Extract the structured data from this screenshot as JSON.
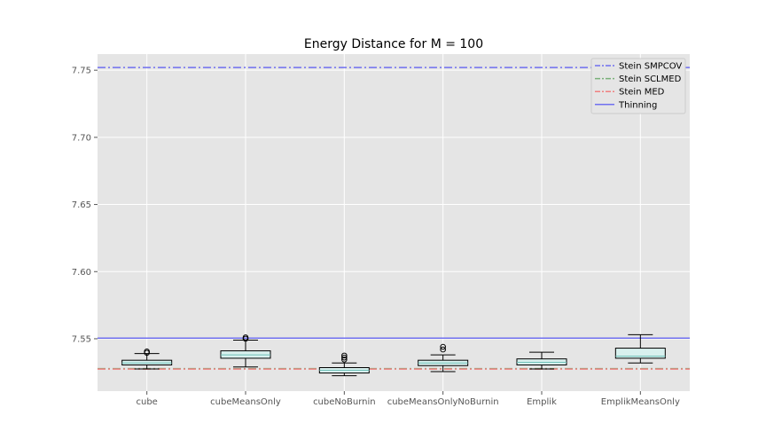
{
  "chart_data": {
    "type": "box",
    "title": "Energy Distance for M = 100",
    "xlabel": "",
    "ylabel": "",
    "ylim": [
      7.511,
      7.762
    ],
    "yticks": [
      "7.55",
      "7.60",
      "7.65",
      "7.70",
      "7.75"
    ],
    "ytick_values": [
      7.55,
      7.6,
      7.65,
      7.7,
      7.75
    ],
    "grid": true,
    "legend_position": "top-right",
    "background": "#e5e5e5",
    "categories": [
      "cube",
      "cubeMeansOnly",
      "cubeNoBurnin",
      "cubeMeansOnlyNoBurnin",
      "Emplik",
      "EmplikMeansOnly"
    ],
    "boxes": [
      {
        "whisker_low": 7.5275,
        "q1": 7.5305,
        "median": 7.532,
        "q3": 7.534,
        "whisker_high": 7.539,
        "outliers": [
          7.5395,
          7.5405
        ]
      },
      {
        "whisker_low": 7.529,
        "q1": 7.5355,
        "median": 7.538,
        "q3": 7.541,
        "whisker_high": 7.549,
        "outliers": [
          7.55,
          7.551
        ]
      },
      {
        "whisker_low": 7.5225,
        "q1": 7.5245,
        "median": 7.5265,
        "q3": 7.5285,
        "whisker_high": 7.532,
        "outliers": [
          7.5345,
          7.536,
          7.5375
        ]
      },
      {
        "whisker_low": 7.5255,
        "q1": 7.53,
        "median": 7.532,
        "q3": 7.534,
        "whisker_high": 7.538,
        "outliers": [
          7.542,
          7.544
        ]
      },
      {
        "whisker_low": 7.5275,
        "q1": 7.5305,
        "median": 7.5325,
        "q3": 7.535,
        "whisker_high": 7.54,
        "outliers": []
      },
      {
        "whisker_low": 7.532,
        "q1": 7.5355,
        "median": 7.537,
        "q3": 7.543,
        "whisker_high": 7.553,
        "outliers": []
      }
    ],
    "reference_lines": [
      {
        "name": "Stein SMPCOV",
        "value": 7.752,
        "color": "#7070f0",
        "style": "dashdot"
      },
      {
        "name": "Stein SCLMED",
        "value": 7.5278,
        "color": "#7ab07a",
        "style": "dashdot"
      },
      {
        "name": "Stein MED",
        "value": 7.5274,
        "color": "#f08080",
        "style": "dashdot"
      },
      {
        "name": "Thinning",
        "value": 7.5505,
        "color": "#7070f0",
        "style": "solid"
      }
    ],
    "box_face_color": "#d8f0ee",
    "box_edge_color": "#000000",
    "median_color": "#6fc0b8"
  }
}
